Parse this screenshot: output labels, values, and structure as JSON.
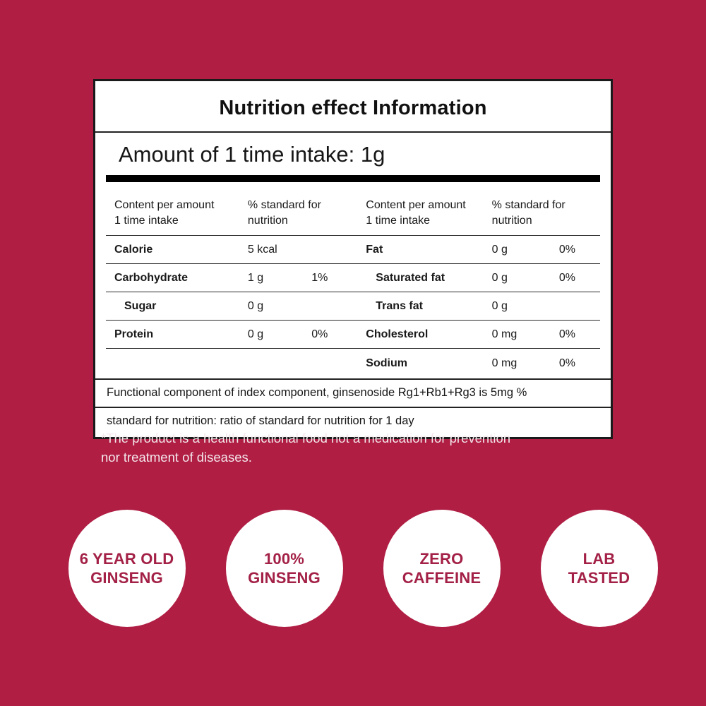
{
  "colors": {
    "background": "#B01E44",
    "badge_text": "#A32046",
    "card_border": "#1A1A1A",
    "card_background": "#FFFFFF"
  },
  "card": {
    "title": "Nutrition effect Information",
    "intake_line": "Amount of 1 time intake: 1g",
    "table": {
      "header": {
        "amount_left": "Content per amount\n1 time intake",
        "standard_left": "% standard for\nnutrition",
        "amount_right": "Content per amount\n1 time intake",
        "standard_right": "% standard for\nnutrition"
      },
      "rows": [
        {
          "l_name": "Calorie",
          "l_value": "5 kcal",
          "l_pct": "",
          "r_name": "Fat",
          "r_value": "0 g",
          "r_pct": "0%"
        },
        {
          "l_name": "Carbohydrate",
          "l_value": "1 g",
          "l_pct": "1%",
          "r_name": "Saturated fat",
          "r_value": "0 g",
          "r_pct": "0%"
        },
        {
          "l_name": "Sugar",
          "l_value": "0 g",
          "l_pct": "",
          "r_name": "Trans fat",
          "r_value": "0 g",
          "r_pct": ""
        },
        {
          "l_name": "Protein",
          "l_value": "0 g",
          "l_pct": "0%",
          "r_name": "Cholesterol",
          "r_value": "0 mg",
          "r_pct": "0%"
        },
        {
          "l_name": "",
          "l_value": "",
          "l_pct": "",
          "r_name": "Sodium",
          "r_value": "0 mg",
          "r_pct": "0%"
        }
      ]
    },
    "footnotes": {
      "functional_component": "Functional component of index component, ginsenoside Rg1+Rb1+Rg3 is 5mg %",
      "standard_note": "standard for nutrition: ratio of standard for nutrition for 1 day"
    }
  },
  "disclaimer": "*The product is a health functional food not a medication for prevention nor treatment of diseases.",
  "badges": [
    {
      "label": "6 YEAR OLD\nGINSENG"
    },
    {
      "label": "100%\nGINSENG"
    },
    {
      "label": "ZERO\nCAFFEINE"
    },
    {
      "label": "LAB\nTASTED"
    }
  ]
}
